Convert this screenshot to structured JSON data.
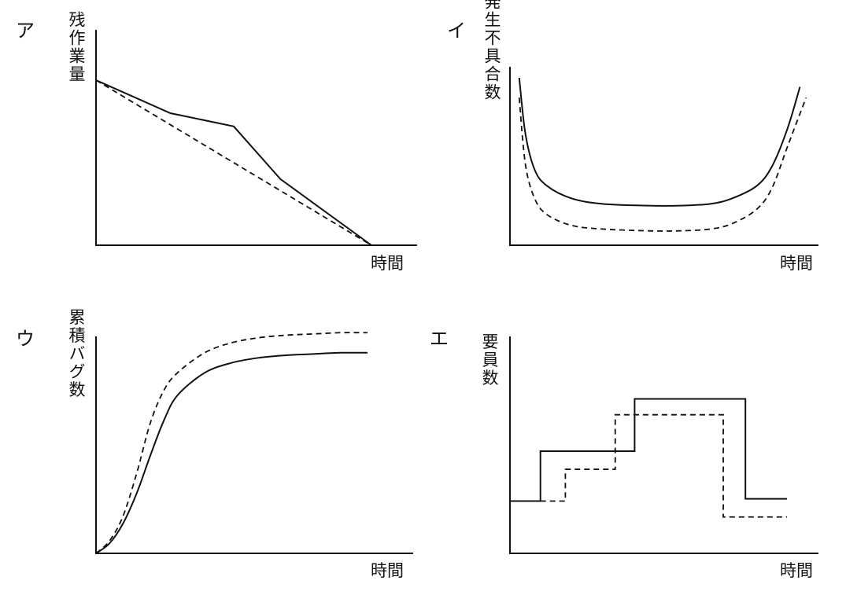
{
  "chart_data": [
    {
      "type": "line",
      "panel_label": "ア",
      "ylabel": "残作業量",
      "xlabel": "時間",
      "xlim": [
        0,
        100
      ],
      "ylim": [
        0,
        100
      ],
      "grid": false,
      "series": [
        {
          "style": "solid",
          "x": [
            0,
            27,
            50,
            67,
            100
          ],
          "y": [
            100,
            80,
            72,
            40,
            0
          ]
        },
        {
          "style": "dashed",
          "x": [
            0,
            100
          ],
          "y": [
            100,
            0
          ]
        }
      ]
    },
    {
      "type": "line",
      "panel_label": "イ",
      "ylabel": "発生不具合数",
      "xlabel": "時間",
      "xlim": [
        0,
        100
      ],
      "ylim": [
        0,
        100
      ],
      "grid": false,
      "series": [
        {
          "style": "solid",
          "x": [
            3,
            5,
            8,
            12,
            20,
            30,
            45,
            55,
            65,
            72,
            80,
            85,
            90,
            94
          ],
          "y": [
            93,
            62,
            42,
            33,
            26,
            23,
            22,
            22,
            23,
            26,
            33,
            44,
            65,
            88
          ]
        },
        {
          "style": "dashed",
          "x": [
            3,
            5,
            8,
            12,
            20,
            30,
            45,
            55,
            65,
            72,
            80,
            85,
            90,
            96
          ],
          "y": [
            82,
            45,
            26,
            17,
            11,
            9,
            8,
            8,
            9,
            12,
            20,
            32,
            55,
            82
          ]
        }
      ]
    },
    {
      "type": "line",
      "panel_label": "ウ",
      "ylabel": "累積バグ数",
      "xlabel": "時間",
      "xlim": [
        0,
        100
      ],
      "ylim": [
        0,
        100
      ],
      "grid": false,
      "series": [
        {
          "style": "solid",
          "x": [
            0,
            5,
            10,
            15,
            20,
            25,
            30,
            40,
            50,
            60,
            70,
            80,
            90,
            100
          ],
          "y": [
            0,
            4,
            12,
            24,
            39,
            53,
            63,
            72,
            76,
            78,
            79,
            79.5,
            80,
            80
          ]
        },
        {
          "style": "dashed",
          "x": [
            0,
            5,
            10,
            15,
            20,
            25,
            30,
            40,
            50,
            60,
            70,
            80,
            90,
            100
          ],
          "y": [
            0,
            5,
            15,
            32,
            52,
            65,
            72,
            80,
            84,
            86,
            87,
            87.5,
            88,
            88
          ]
        }
      ]
    },
    {
      "type": "line",
      "panel_label": "エ",
      "ylabel": "要員数",
      "xlabel": "時間",
      "xlim": [
        0,
        100
      ],
      "ylim": [
        0,
        100
      ],
      "grid": false,
      "series": [
        {
          "style": "solid",
          "x": [
            0,
            11,
            11,
            45,
            45,
            85,
            85,
            100
          ],
          "y": [
            23,
            23,
            45,
            45,
            68,
            68,
            24,
            24
          ]
        },
        {
          "style": "dashed",
          "x": [
            11,
            20,
            20,
            38,
            38,
            77,
            77,
            100
          ],
          "y": [
            23,
            23,
            37,
            37,
            61,
            61,
            16,
            16
          ]
        }
      ]
    }
  ]
}
